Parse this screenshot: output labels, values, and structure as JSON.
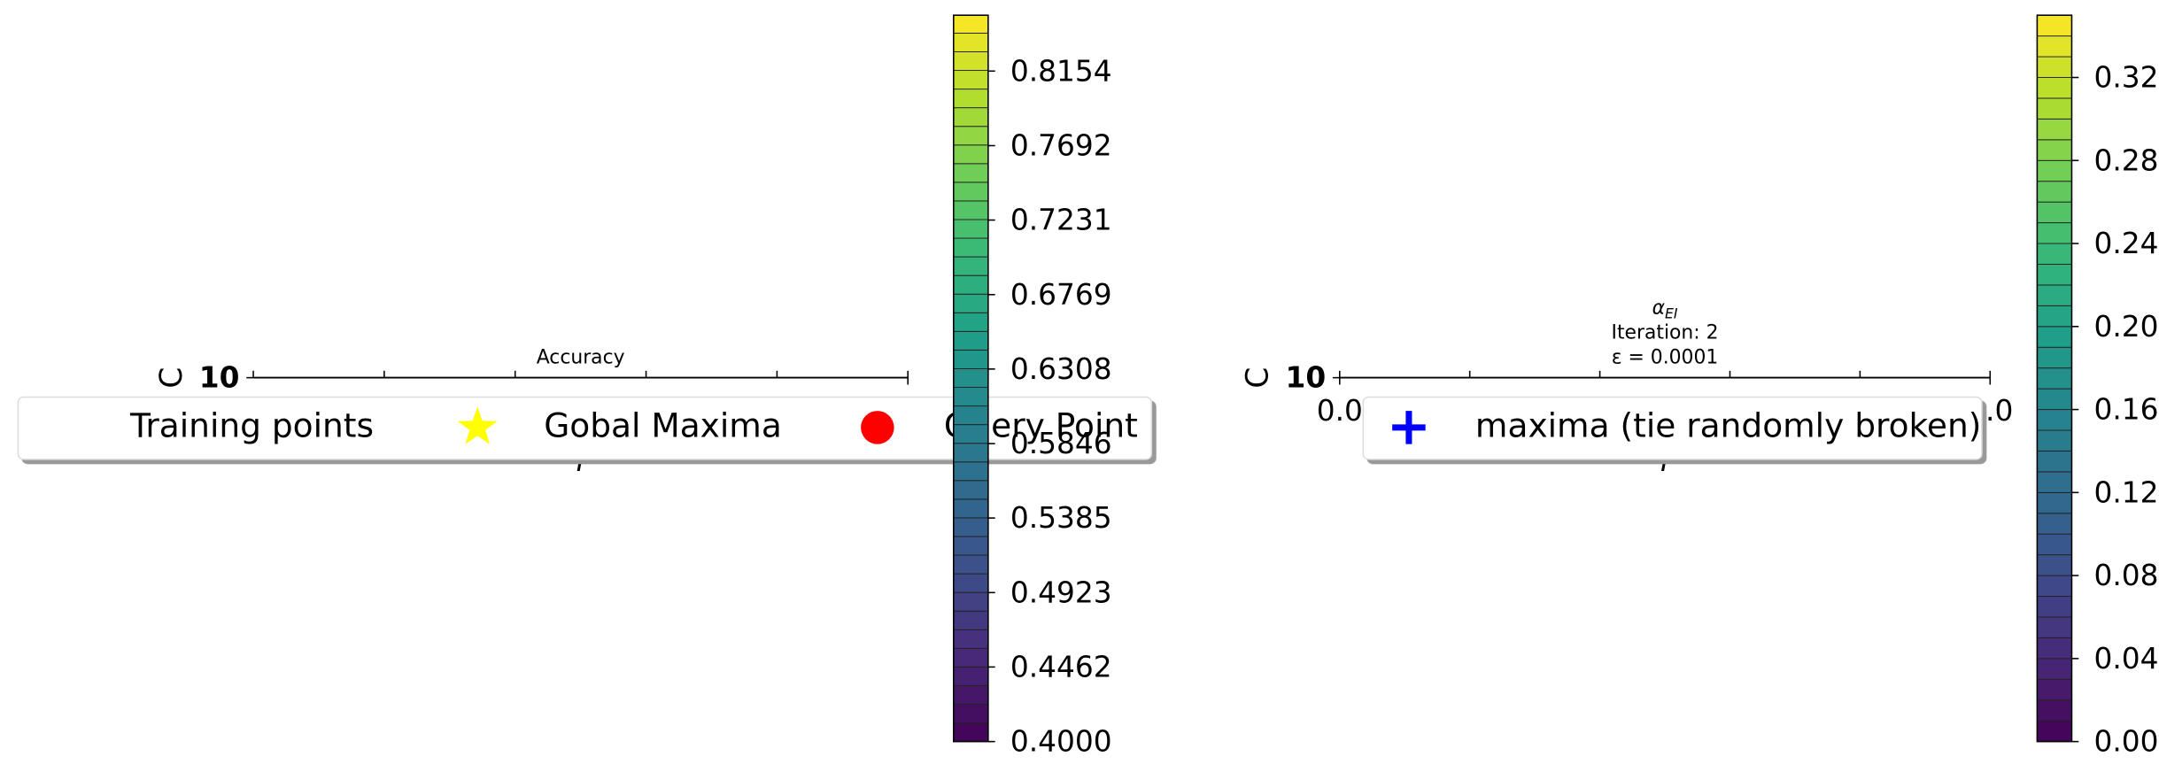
{
  "chart_data": [
    {
      "type": "contour",
      "title": "Accuracy",
      "xlabel": "γ",
      "ylabel": "C",
      "xlim": [
        0,
        1
      ],
      "xticks": [
        {
          "value": 1,
          "label": "1.0"
        }
      ],
      "yticks": [
        10
      ],
      "series": [
        {
          "name": "Training points",
          "color": "#ffffff",
          "marker": "none"
        },
        {
          "name": "Gobal Maxima",
          "color": "#ffff00",
          "marker": "star"
        },
        {
          "name": "Query Point",
          "color": "#ff0000",
          "marker": "circle"
        }
      ],
      "colorbar": {
        "lim": [
          0.4,
          0.85
        ],
        "ticks": [
          {
            "value": 0.4,
            "label": "0.4000"
          },
          {
            "value": 0.4462,
            "label": "0.4462"
          },
          {
            "value": 0.4923,
            "label": "0.4923"
          },
          {
            "value": 0.5385,
            "label": "0.5385"
          },
          {
            "value": 0.5846,
            "label": "0.5846"
          },
          {
            "value": 0.6308,
            "label": "0.6308"
          },
          {
            "value": 0.6769,
            "label": "0.6769"
          },
          {
            "value": 0.7231,
            "label": "0.7231"
          },
          {
            "value": 0.7692,
            "label": "0.7692"
          },
          {
            "value": 0.8154,
            "label": "0.8154"
          }
        ]
      }
    },
    {
      "type": "contour",
      "title": "α",
      "title_sub": "EI",
      "subtitle": [
        "Iteration: 2",
        "ε = 0.0001"
      ],
      "xlabel": "γ",
      "ylabel": "C",
      "xlim": [
        0,
        1
      ],
      "xticks": [
        {
          "value": 0,
          "label": "0.0"
        },
        {
          "value": 1,
          "label": "1.0"
        }
      ],
      "yticks": [
        10
      ],
      "series": [
        {
          "name": "maxima (tie randomly broken)",
          "color": "#0000ff",
          "marker": "plus"
        }
      ],
      "colorbar": {
        "lim": [
          0,
          0.35
        ],
        "ticks": [
          {
            "value": 0,
            "label": "0.00"
          },
          {
            "value": 0.04,
            "label": "0.04"
          },
          {
            "value": 0.08,
            "label": "0.08"
          },
          {
            "value": 0.12,
            "label": "0.12"
          },
          {
            "value": 0.16,
            "label": "0.16"
          },
          {
            "value": 0.2,
            "label": "0.20"
          },
          {
            "value": 0.24,
            "label": "0.24"
          },
          {
            "value": 0.28,
            "label": "0.28"
          },
          {
            "value": 0.32,
            "label": "0.32"
          }
        ]
      }
    }
  ]
}
